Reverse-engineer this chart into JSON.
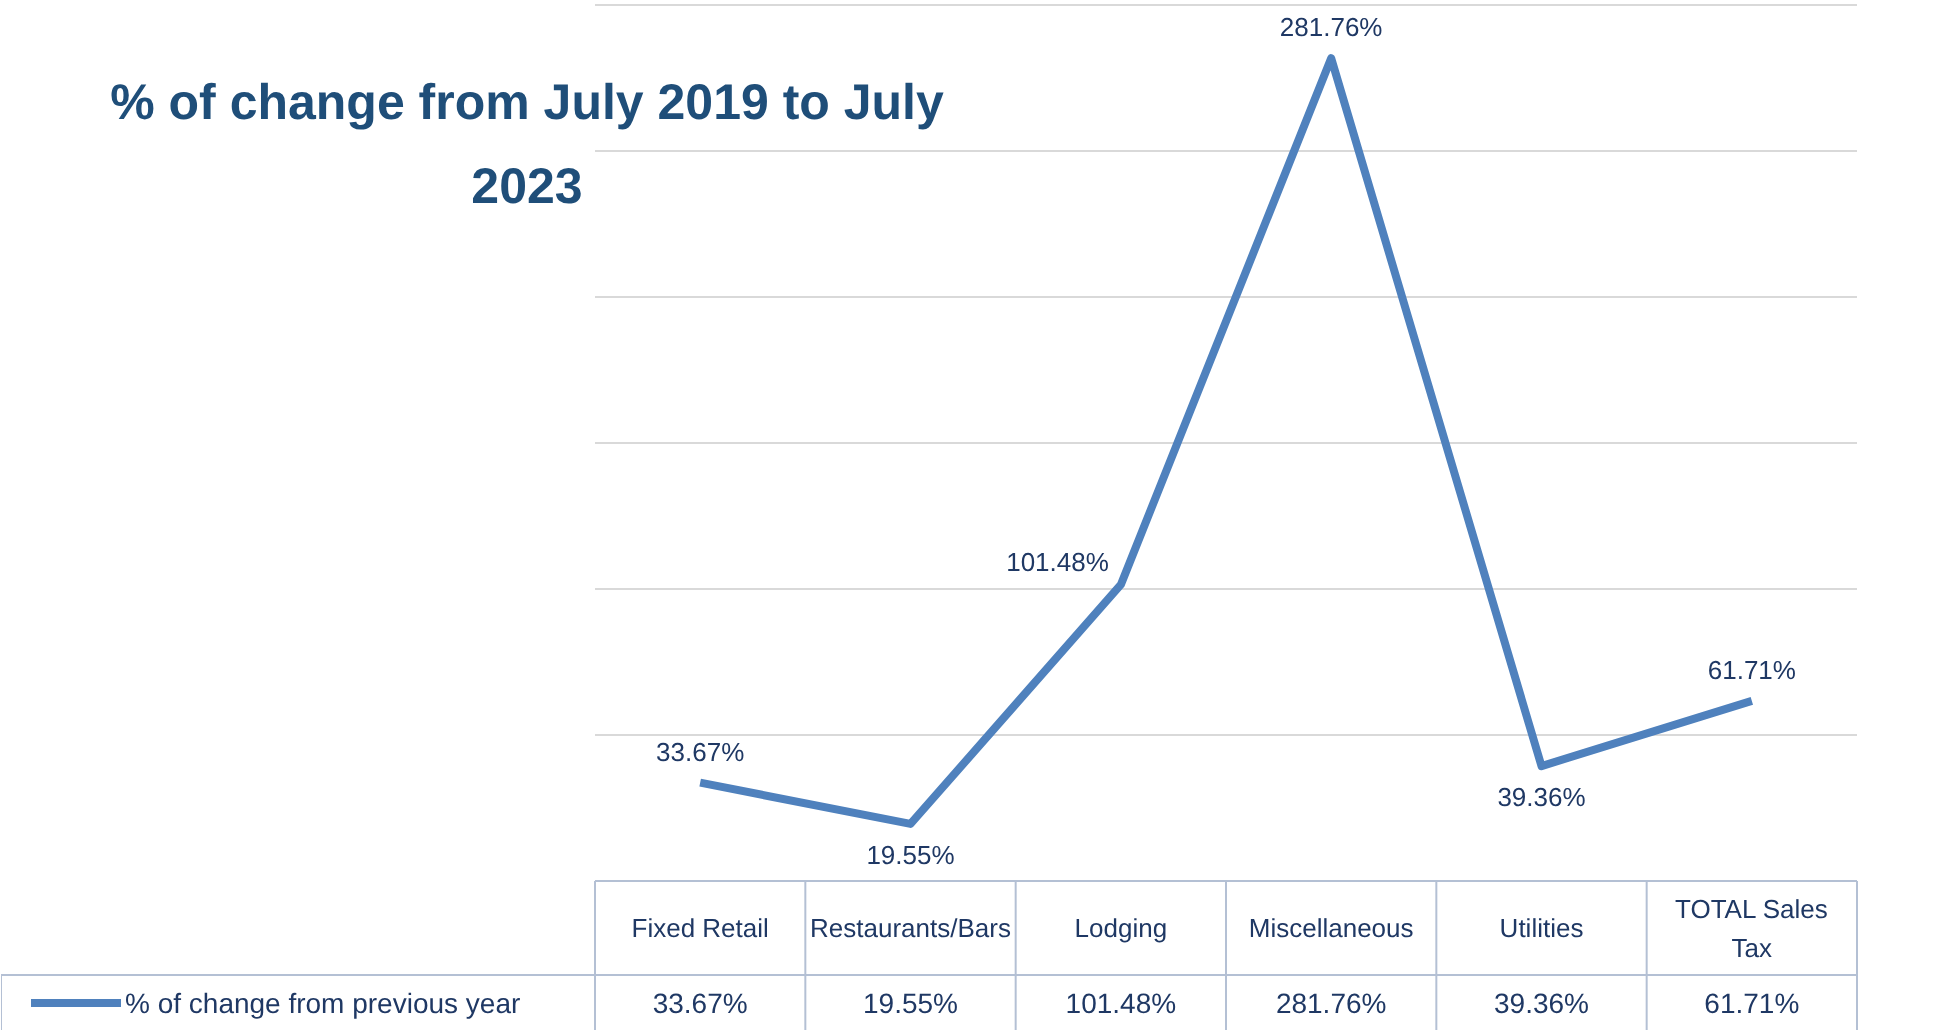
{
  "chart_data": {
    "type": "line",
    "title": "% of change from July 2019 to July 2023",
    "categories": [
      "Fixed Retail",
      "Restaurants/Bars",
      "Lodging",
      "Miscellaneous",
      "Utilities",
      "TOTAL Sales Tax"
    ],
    "series": [
      {
        "name": "% of change from previous year",
        "color": "#4f81bd",
        "values": [
          33.67,
          19.55,
          101.48,
          281.76,
          39.36,
          61.71
        ],
        "value_labels": [
          "33.67%",
          "19.55%",
          "101.48%",
          "281.76%",
          "39.36%",
          "61.71%"
        ]
      }
    ],
    "ylim": [
      0,
      300
    ],
    "yticks": [
      {
        "value": 50,
        "label": null
      },
      {
        "value": 100,
        "label": null
      },
      {
        "value": 150,
        "label": null
      },
      {
        "value": 200,
        "label": null
      },
      {
        "value": 250,
        "label": null
      },
      {
        "value": 300,
        "label": null
      }
    ],
    "grid": "y",
    "legend": "bottom",
    "data_labels": true,
    "marker": "none",
    "line_style": "solid"
  }
}
